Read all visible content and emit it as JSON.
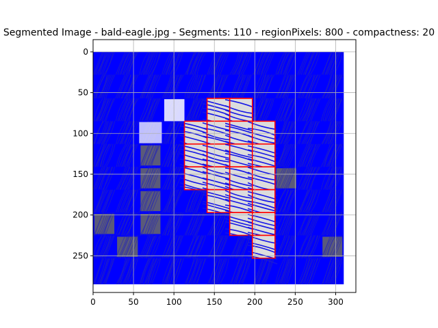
{
  "chart_data": {
    "type": "heatmap",
    "title": "Segmented Image - bald-eagle.jpg - Segments: 110 - regionPixels: 800 - compactness: 20",
    "xlabel": "",
    "ylabel": "",
    "xlim": [
      0,
      325
    ],
    "ylim": [
      295,
      -15
    ],
    "y_inverted": true,
    "grid": true,
    "image_extent": {
      "width": 310,
      "height": 285
    },
    "x_ticks": [
      0,
      50,
      100,
      150,
      200,
      250,
      300
    ],
    "y_ticks": [
      0,
      50,
      100,
      150,
      200,
      250
    ],
    "segment_grid": {
      "columns": [
        0,
        28,
        57,
        85,
        113,
        141,
        169,
        197,
        225,
        253,
        282,
        310
      ],
      "rows": [
        0,
        28,
        57,
        85,
        113,
        141,
        169,
        197,
        225,
        253,
        285
      ]
    },
    "highlighted_segments": [
      [
        2,
        5
      ],
      [
        2,
        6
      ],
      [
        3,
        4
      ],
      [
        3,
        5
      ],
      [
        3,
        6
      ],
      [
        3,
        7
      ],
      [
        4,
        4
      ],
      [
        4,
        5
      ],
      [
        4,
        6
      ],
      [
        4,
        7
      ],
      [
        5,
        4
      ],
      [
        5,
        5
      ],
      [
        5,
        6
      ],
      [
        5,
        7
      ],
      [
        6,
        5
      ],
      [
        6,
        6
      ],
      [
        6,
        7
      ],
      [
        7,
        6
      ],
      [
        7,
        7
      ],
      [
        8,
        7
      ]
    ],
    "gray_segments": [
      [
        4,
        2
      ],
      [
        7,
        0
      ],
      [
        7,
        2
      ],
      [
        8,
        1
      ],
      [
        8,
        10
      ],
      [
        5,
        2
      ],
      [
        6,
        2
      ],
      [
        5,
        8
      ]
    ],
    "colors": {
      "background": "#0000ff",
      "highlight_fill": "#dcdcdc",
      "boundary": "#ff0000",
      "stroke": "#1414e6",
      "gray": "#5a5a7a",
      "white": "#ffffff"
    }
  }
}
